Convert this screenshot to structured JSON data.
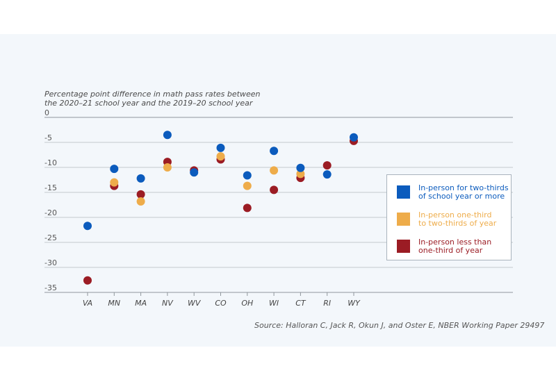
{
  "chart_data": {
    "type": "scatter",
    "ylabel": "Percentage point difference in math pass rates between the 2020–21 school year and the 2019–20 school year",
    "ylabel_lines": [
      "Percentage point difference in math pass rates between",
      "the 2020–21 school year and the 2019–20 school year"
    ],
    "xlabel": "",
    "ylim": [
      -35,
      0
    ],
    "yticks": [
      0,
      -5,
      -10,
      -15,
      -20,
      -25,
      -30,
      -35
    ],
    "ytick_labels": [
      "0",
      "-5",
      "-10",
      "-15",
      "-20",
      "-25",
      "-30",
      "-35"
    ],
    "grid": true,
    "categories": [
      "VA",
      "MN",
      "MA",
      "NV",
      "WV",
      "CO",
      "OH",
      "WI",
      "CT",
      "RI",
      "WY"
    ],
    "series": [
      {
        "name": "In-person less than one-third of year",
        "color": "#9b1c24",
        "values": [
          -32.6,
          -13.7,
          -15.4,
          -8.9,
          -10.6,
          -8.4,
          -18.1,
          -14.5,
          -12.1,
          -9.6,
          -4.7
        ]
      },
      {
        "name": "In-person one-third to two-thirds of year",
        "color": "#eeac4a",
        "values": [
          null,
          -13.0,
          -16.8,
          -10.0,
          null,
          -7.8,
          -13.7,
          -10.6,
          -11.3,
          null,
          null
        ]
      },
      {
        "name": "In-person for two-thirds of school year or more",
        "color": "#0b5bbd",
        "values": [
          -21.7,
          -10.3,
          -12.2,
          -3.5,
          -11.0,
          -6.1,
          -11.6,
          -6.7,
          -10.1,
          -11.4,
          -4.0
        ]
      }
    ],
    "legend_position": "right",
    "legend": [
      {
        "label": "In-person for two-thirds of school year or more",
        "lines": [
          "In-person for two-thirds",
          "of school year or more"
        ],
        "color": "#0b5bbd"
      },
      {
        "label": "In-person one-third to two-thirds of year",
        "lines": [
          "In-person one-third",
          "to two-thirds of year"
        ],
        "color": "#eeac4a"
      },
      {
        "label": "In-person less than one-third of year",
        "lines": [
          "In-person less than",
          "one-third of year"
        ],
        "color": "#9b1c24"
      }
    ],
    "source": "Source: Halloran C, Jack R, Okun J, and Oster E, NBER Working Paper 29497"
  }
}
